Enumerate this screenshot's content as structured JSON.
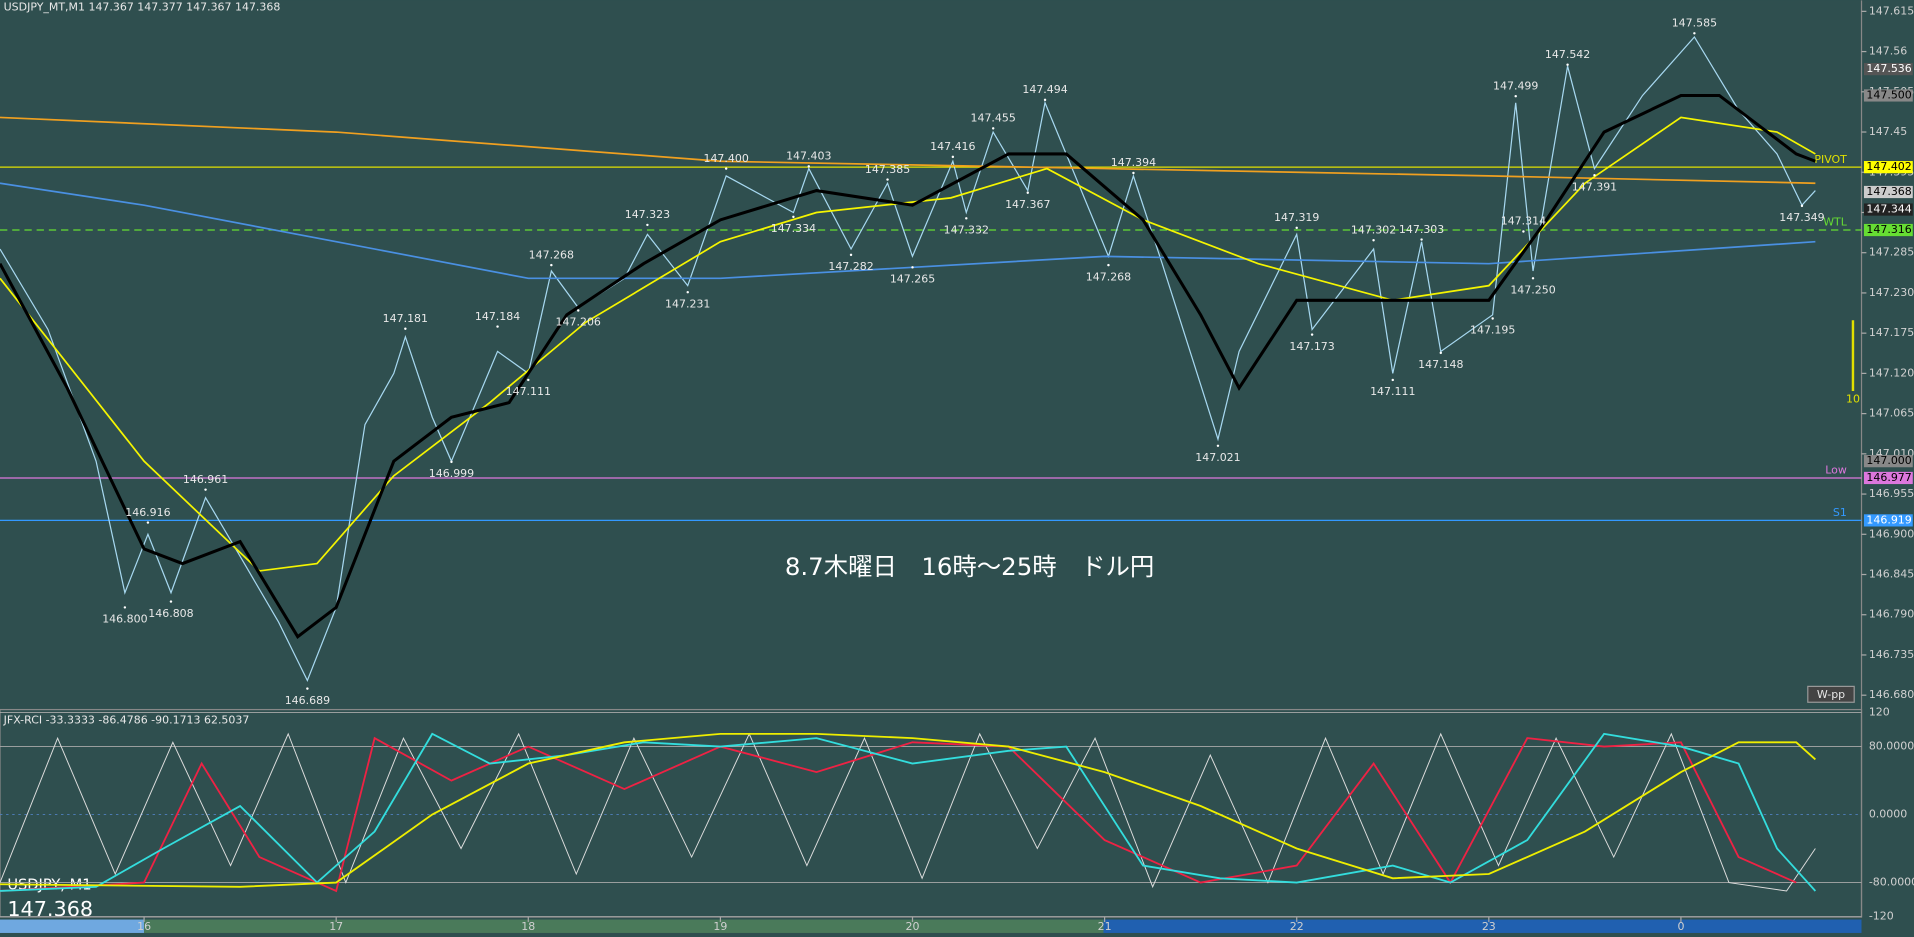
{
  "chart_data": {
    "type": "line",
    "title": "USDJPY_MT,M1  147.367 147.377 147.367 147.368",
    "annotation": "8.7木曜日　16時～25時　ドル円",
    "symbol": "USDJPY, M1",
    "last_price": "147.368",
    "button": "W-pp",
    "side_label": "10",
    "xlim": [
      15.25,
      24.94
    ],
    "xticks": [
      16,
      17,
      18,
      19,
      20,
      21,
      22,
      23,
      {
        "value": 24,
        "label": "0"
      }
    ],
    "ylim": [
      146.662,
      147.63
    ],
    "yticks": [
      147.615,
      147.56,
      147.505,
      147.45,
      147.395,
      147.34,
      147.285,
      {
        "value": 147.23,
        "label": "147.230"
      },
      147.175,
      {
        "value": 147.12,
        "label": "147.120"
      },
      147.065,
      {
        "value": 147.01,
        "label": "147.010"
      },
      146.955,
      {
        "value": 146.9,
        "label": "146.900"
      },
      146.845,
      {
        "value": 146.79,
        "label": "146.790"
      },
      146.735,
      {
        "value": 146.68,
        "label": "146.680"
      }
    ],
    "series": [
      {
        "color": "#a7d8f0",
        "x": [
          15.25,
          15.5,
          15.75,
          15.9,
          16.02,
          16.14,
          16.32,
          16.5,
          16.7,
          16.85,
          17.0,
          17.15,
          17.3,
          17.36,
          17.5,
          17.6,
          17.84,
          18.0,
          18.12,
          18.26,
          18.5,
          18.62,
          18.83,
          19.03,
          19.38,
          19.46,
          19.68,
          19.87,
          20.0,
          20.21,
          20.28,
          20.42,
          20.6,
          20.69,
          21.02,
          21.15,
          21.3,
          21.59,
          21.7,
          22.0,
          22.08,
          22.4,
          22.5,
          22.65,
          22.75,
          23.02,
          23.14,
          23.23,
          23.41,
          23.55,
          23.8,
          24.07,
          24.3,
          24.5,
          24.63,
          24.7
        ],
        "values": [
          147.29,
          147.18,
          147.0,
          146.82,
          146.9,
          146.82,
          146.95,
          146.87,
          146.78,
          146.7,
          146.8,
          147.05,
          147.12,
          147.17,
          147.06,
          147.0,
          147.15,
          147.12,
          147.26,
          147.21,
          147.25,
          147.31,
          147.24,
          147.39,
          147.34,
          147.4,
          147.29,
          147.38,
          147.28,
          147.41,
          147.34,
          147.45,
          147.37,
          147.49,
          147.28,
          147.39,
          147.27,
          147.03,
          147.15,
          147.31,
          147.18,
          147.29,
          147.12,
          147.3,
          147.15,
          147.2,
          147.49,
          147.26,
          147.54,
          147.4,
          147.5,
          147.58,
          147.48,
          147.42,
          147.35,
          147.37
        ]
      },
      {
        "color": "#f0a020",
        "x": [
          15.25,
          17,
          19,
          21,
          23,
          24.7
        ],
        "values": [
          147.47,
          147.45,
          147.41,
          147.4,
          147.39,
          147.38
        ]
      },
      {
        "color": "#4a90e2",
        "x": [
          15.25,
          16,
          17,
          18,
          19,
          21,
          23,
          24.7
        ],
        "values": [
          147.38,
          147.35,
          147.3,
          147.25,
          147.25,
          147.28,
          147.27,
          147.3
        ]
      },
      {
        "color": "#f5f500",
        "x": [
          15.25,
          16.0,
          16.6,
          16.9,
          17.3,
          17.8,
          18.3,
          19.0,
          19.5,
          20.2,
          20.7,
          21.2,
          21.8,
          22.5,
          23.0,
          23.5,
          24.0,
          24.5,
          24.7
        ],
        "values": [
          147.25,
          147.0,
          146.85,
          146.86,
          146.98,
          147.08,
          147.19,
          147.3,
          147.34,
          147.36,
          147.4,
          147.33,
          147.27,
          147.22,
          147.24,
          147.38,
          147.47,
          147.45,
          147.42
        ]
      },
      {
        "color": "#000000",
        "x": [
          15.25,
          15.6,
          16.0,
          16.2,
          16.5,
          16.8,
          17.0,
          17.3,
          17.6,
          17.9,
          18.2,
          18.6,
          19.0,
          19.5,
          20.0,
          20.5,
          20.8,
          21.2,
          21.5,
          21.7,
          22.0,
          22.5,
          23.0,
          23.3,
          23.6,
          24.0,
          24.2,
          24.6,
          24.7
        ],
        "values": [
          147.27,
          147.1,
          146.88,
          146.86,
          146.89,
          146.76,
          146.8,
          147.0,
          147.06,
          147.08,
          147.2,
          147.27,
          147.33,
          147.37,
          147.35,
          147.42,
          147.42,
          147.33,
          147.2,
          147.1,
          147.22,
          147.22,
          147.22,
          147.33,
          147.45,
          147.5,
          147.5,
          147.42,
          147.41
        ]
      }
    ],
    "highs": {
      "x": [
        16.02,
        16.32,
        17.36,
        17.84,
        18.12,
        18.62,
        19.03,
        19.46,
        19.87,
        20.21,
        20.42,
        20.69,
        21.15,
        22.0,
        22.4,
        22.65,
        23.18,
        23.14,
        23.41,
        24.07
      ],
      "values": [
        146.916,
        146.961,
        147.181,
        147.184,
        147.268,
        147.323,
        147.4,
        147.403,
        147.385,
        147.416,
        147.455,
        147.494,
        147.394,
        147.319,
        147.302,
        147.303,
        147.314,
        147.499,
        147.542,
        147.585
      ],
      "value_labels": [
        "146.916",
        "146.961",
        "147.181",
        "147.184",
        "147.268",
        "147.323",
        "147.400",
        "147.403",
        "147.385",
        "147.416",
        "147.455",
        "147.494",
        "147.394",
        "147.319",
        "147.302",
        "147.303",
        "147.314",
        "147.499",
        "147.542",
        "147.585"
      ]
    },
    "lows": {
      "x": [
        15.9,
        16.14,
        16.85,
        17.6,
        18.0,
        18.26,
        18.83,
        19.38,
        19.68,
        20.0,
        20.28,
        20.6,
        21.02,
        21.59,
        22.08,
        22.5,
        22.75,
        23.02,
        23.23,
        23.55,
        24.63
      ],
      "values": [
        146.8,
        146.808,
        146.689,
        146.999,
        147.111,
        147.206,
        147.231,
        147.334,
        147.282,
        147.265,
        147.332,
        147.367,
        147.268,
        147.021,
        147.173,
        147.111,
        147.148,
        147.195,
        147.25,
        147.391,
        147.349
      ],
      "value_labels": [
        "146.800",
        "146.808",
        "146.689",
        "146.999",
        "147.111",
        "147.206",
        "147.231",
        "147.334",
        "147.282",
        "147.265",
        "147.332",
        "147.367",
        "147.268",
        "147.021",
        "147.173",
        "147.111",
        "147.148",
        "147.195",
        "147.250",
        "147.391",
        "147.349"
      ]
    },
    "levels": [
      {
        "label": "PIVOT",
        "value": 147.402,
        "color": "#e0e000"
      },
      {
        "label": "WTL",
        "value": 147.316,
        "color": "#66dd33"
      },
      {
        "label": "Low",
        "value": 146.977,
        "color": "#dd77dd"
      },
      {
        "label": "S1",
        "value": 146.919,
        "color": "#3399ff"
      }
    ],
    "price_tags": [
      {
        "value": 147.536,
        "color": "#555555"
      },
      {
        "value": 147.5,
        "label": "147.500",
        "color": "#888888"
      },
      {
        "value": 147.402,
        "color": "#ffff00"
      },
      {
        "value": 147.368,
        "color": "#cccccc"
      },
      {
        "value": 147.344,
        "color": "#222222"
      },
      {
        "value": 147.316,
        "color": "#66dd33"
      },
      {
        "value": 147.0,
        "label": "147.000",
        "color": "#888888"
      },
      {
        "value": 146.977,
        "color": "#dd77dd"
      },
      {
        "value": 146.919,
        "color": "#3399ff"
      }
    ],
    "rci": {
      "header": "JFX-RCI -33.3333 -86.4786 -90.1713 62.5037",
      "ylim": [
        -125,
        125
      ],
      "yticks": [
        120,
        {
          "value": 80,
          "label": "80.0000"
        },
        {
          "value": 0,
          "label": "0.0000"
        },
        {
          "value": -80,
          "label": "-80.0000"
        },
        -120
      ],
      "series": [
        {
          "color": "#dddddd",
          "x": [
            15.25,
            15.55,
            15.85,
            16.15,
            16.45,
            16.75,
            17.05,
            17.35,
            17.65,
            17.95,
            18.25,
            18.55,
            18.85,
            19.15,
            19.45,
            19.75,
            20.05,
            20.35,
            20.65,
            20.95,
            21.25,
            21.55,
            21.85,
            22.15,
            22.45,
            22.75,
            23.05,
            23.35,
            23.65,
            23.95,
            24.25,
            24.55,
            24.7
          ],
          "values": [
            -80,
            90,
            -70,
            85,
            -60,
            95,
            -80,
            90,
            -40,
            95,
            -70,
            90,
            -50,
            95,
            -60,
            90,
            -75,
            95,
            -40,
            90,
            -85,
            70,
            -80,
            90,
            -70,
            95,
            -60,
            90,
            -50,
            95,
            -80,
            -90,
            -40
          ]
        },
        {
          "color": "#ee2244",
          "x": [
            15.25,
            16.0,
            16.3,
            16.6,
            17.0,
            17.2,
            17.6,
            18.0,
            18.5,
            19.0,
            19.5,
            20.0,
            20.5,
            21.0,
            21.5,
            22.0,
            22.4,
            22.8,
            23.2,
            23.6,
            24.0,
            24.3,
            24.6
          ],
          "values": [
            -90,
            -80,
            60,
            -50,
            -90,
            90,
            40,
            80,
            30,
            80,
            50,
            85,
            80,
            -30,
            -80,
            -60,
            60,
            -80,
            90,
            80,
            85,
            -50,
            -80
          ]
        },
        {
          "color": "#33dddd",
          "x": [
            15.25,
            15.75,
            16.1,
            16.5,
            16.9,
            17.2,
            17.5,
            17.8,
            18.2,
            18.6,
            19.0,
            19.5,
            20.0,
            20.5,
            20.8,
            21.2,
            21.6,
            22.0,
            22.5,
            22.8,
            23.2,
            23.6,
            24.0,
            24.3,
            24.5,
            24.7
          ],
          "values": [
            -90,
            -85,
            -40,
            10,
            -80,
            -20,
            95,
            60,
            70,
            85,
            80,
            90,
            60,
            75,
            80,
            -60,
            -75,
            -80,
            -60,
            -80,
            -30,
            95,
            80,
            60,
            -40,
            -90
          ]
        },
        {
          "color": "#eeee00",
          "x": [
            15.25,
            16.5,
            17.0,
            17.5,
            18.0,
            18.5,
            19.0,
            19.5,
            20.0,
            20.5,
            21.0,
            21.5,
            22.0,
            22.5,
            23.0,
            23.5,
            24.0,
            24.3,
            24.6,
            24.7
          ],
          "values": [
            -82,
            -85,
            -80,
            0,
            60,
            85,
            95,
            95,
            90,
            80,
            50,
            10,
            -40,
            -75,
            -70,
            -20,
            50,
            85,
            85,
            65
          ]
        }
      ]
    }
  }
}
